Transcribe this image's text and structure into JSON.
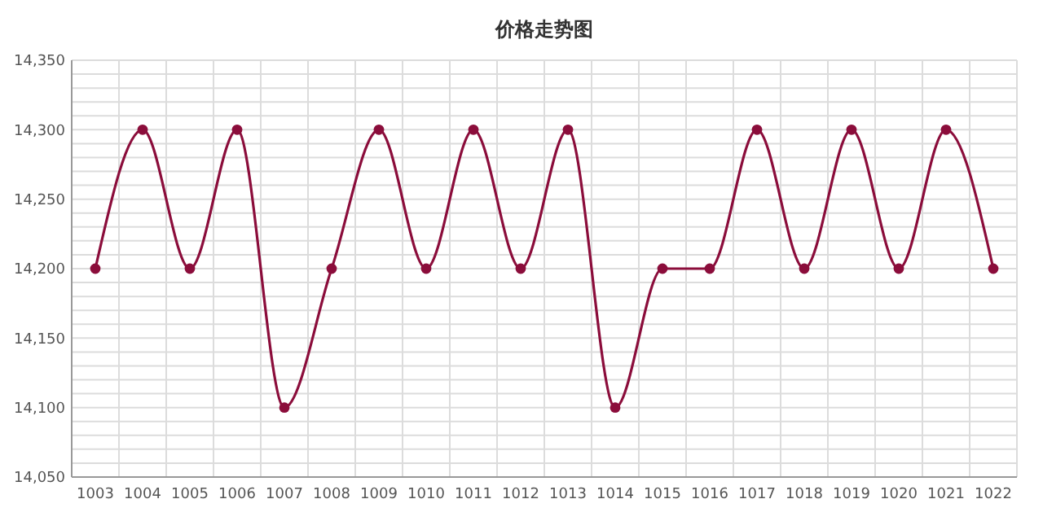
{
  "chart_data": {
    "type": "line",
    "title": "价格走势图",
    "categories": [
      "1003",
      "1004",
      "1005",
      "1006",
      "1007",
      "1008",
      "1009",
      "1010",
      "1011",
      "1012",
      "1013",
      "1014",
      "1015",
      "1016",
      "1017",
      "1018",
      "1019",
      "1020",
      "1021",
      "1022"
    ],
    "series": [
      {
        "color": "#8b0d3b",
        "values": [
          14200,
          14300,
          14200,
          14300,
          14100,
          14200,
          14300,
          14200,
          14300,
          14200,
          14300,
          14100,
          14200,
          14200,
          14300,
          14200,
          14300,
          14200,
          14300,
          14200
        ]
      }
    ],
    "ylim": [
      14050,
      14350
    ],
    "yticks": [
      {
        "value": 14050,
        "label": "14,050"
      },
      {
        "value": 14060,
        "label": null
      },
      {
        "value": 14070,
        "label": null
      },
      {
        "value": 14080,
        "label": null
      },
      {
        "value": 14090,
        "label": null
      },
      {
        "value": 14100,
        "label": "14,100"
      },
      {
        "value": 14110,
        "label": null
      },
      {
        "value": 14120,
        "label": null
      },
      {
        "value": 14130,
        "label": null
      },
      {
        "value": 14140,
        "label": null
      },
      {
        "value": 14150,
        "label": "14,150"
      },
      {
        "value": 14160,
        "label": null
      },
      {
        "value": 14170,
        "label": null
      },
      {
        "value": 14180,
        "label": null
      },
      {
        "value": 14190,
        "label": null
      },
      {
        "value": 14200,
        "label": "14,200"
      },
      {
        "value": 14210,
        "label": null
      },
      {
        "value": 14220,
        "label": null
      },
      {
        "value": 14230,
        "label": null
      },
      {
        "value": 14240,
        "label": null
      },
      {
        "value": 14250,
        "label": "14,250"
      },
      {
        "value": 14260,
        "label": null
      },
      {
        "value": 14270,
        "label": null
      },
      {
        "value": 14280,
        "label": null
      },
      {
        "value": 14290,
        "label": null
      },
      {
        "value": 14300,
        "label": "14,300"
      },
      {
        "value": 14310,
        "label": null
      },
      {
        "value": 14320,
        "label": null
      },
      {
        "value": 14330,
        "label": null
      },
      {
        "value": 14340,
        "label": null
      },
      {
        "value": 14350,
        "label": "14,350"
      }
    ],
    "grid": true,
    "marker": "circle",
    "line_style": "solid"
  }
}
